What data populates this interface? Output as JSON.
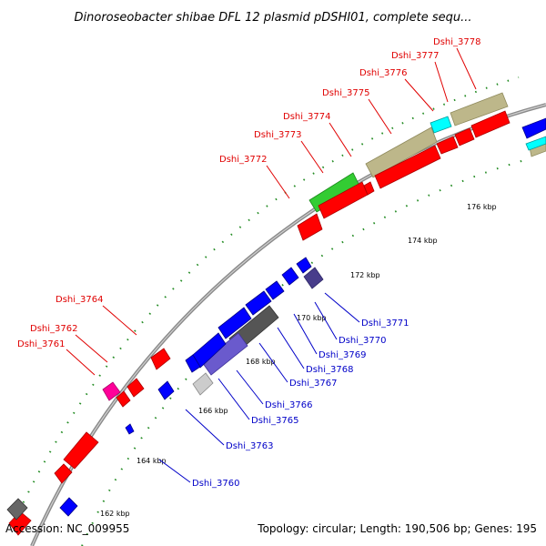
{
  "title": "Dinoroseobacter shibae DFL 12 plasmid pDSHI01, complete sequ...",
  "footer": {
    "accession": "Accession: NC_009955",
    "summary": "Topology: circular; Length: 190,506 bp; Genes: 195"
  },
  "colors": {
    "forward_gene": "#ff0000",
    "reverse_gene": "#0000ff",
    "rna": "#33cc33",
    "mobile_element": "#bdb78a",
    "repeat": "#00ffff",
    "pseudo": "#ff0099",
    "region_dark": "#555555",
    "region_violet": "#6a5acd",
    "backbone": "#8a8a8a",
    "ticks": "#228b22",
    "forward_label": "#e00000",
    "reverse_label": "#0000c8"
  },
  "ticks": [
    "162 kbp",
    "164 kbp",
    "166 kbp",
    "168 kbp",
    "170 kbp",
    "172 kbp",
    "174 kbp",
    "176 kbp"
  ],
  "forward_labels": [
    "Dshi_3778",
    "Dshi_3777",
    "Dshi_3776",
    "Dshi_3775",
    "Dshi_3774",
    "Dshi_3773",
    "Dshi_3772",
    "Dshi_3764",
    "Dshi_3762",
    "Dshi_3761"
  ],
  "reverse_labels": [
    "Dshi_3771",
    "Dshi_3770",
    "Dshi_3769",
    "Dshi_3768",
    "Dshi_3767",
    "Dshi_3766",
    "Dshi_3765",
    "Dshi_3763",
    "Dshi_3760"
  ]
}
